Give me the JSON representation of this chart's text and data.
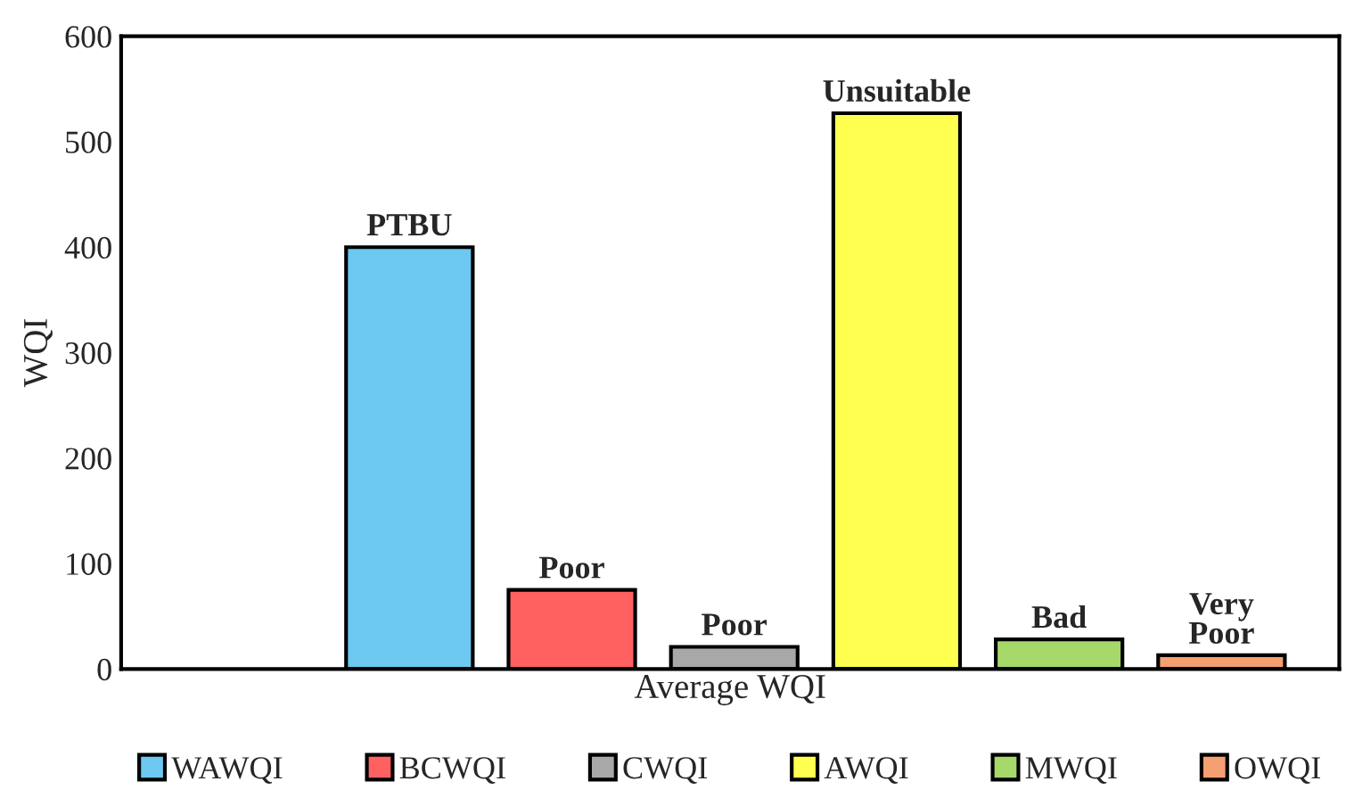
{
  "chart_data": {
    "type": "bar",
    "ylabel": "WQI",
    "categories": [
      "Average WQI"
    ],
    "series": [
      {
        "name": "WAWQI",
        "color": "#6cc8f0",
        "values": [
          400
        ],
        "value_labels": [
          "PTBU"
        ]
      },
      {
        "name": "BCWQI",
        "color": "#ff6060",
        "values": [
          75
        ],
        "value_labels": [
          "Poor"
        ]
      },
      {
        "name": "CWQI",
        "color": "#a8a8a8",
        "values": [
          21
        ],
        "value_labels": [
          "Poor"
        ]
      },
      {
        "name": "AWQI",
        "color": "#ffff50",
        "values": [
          527
        ],
        "value_labels": [
          "Unsuitable"
        ]
      },
      {
        "name": "MWQI",
        "color": "#a6d86a",
        "values": [
          28
        ],
        "value_labels": [
          "Bad"
        ]
      },
      {
        "name": "OWQI",
        "color": "#f4a070",
        "values": [
          13
        ],
        "value_labels": [
          "Very\nPoor"
        ]
      }
    ],
    "ylim": [
      0,
      600
    ],
    "yticks": [
      0,
      100,
      200,
      300,
      400,
      500,
      600
    ],
    "grid": false,
    "legend": "bottom"
  }
}
